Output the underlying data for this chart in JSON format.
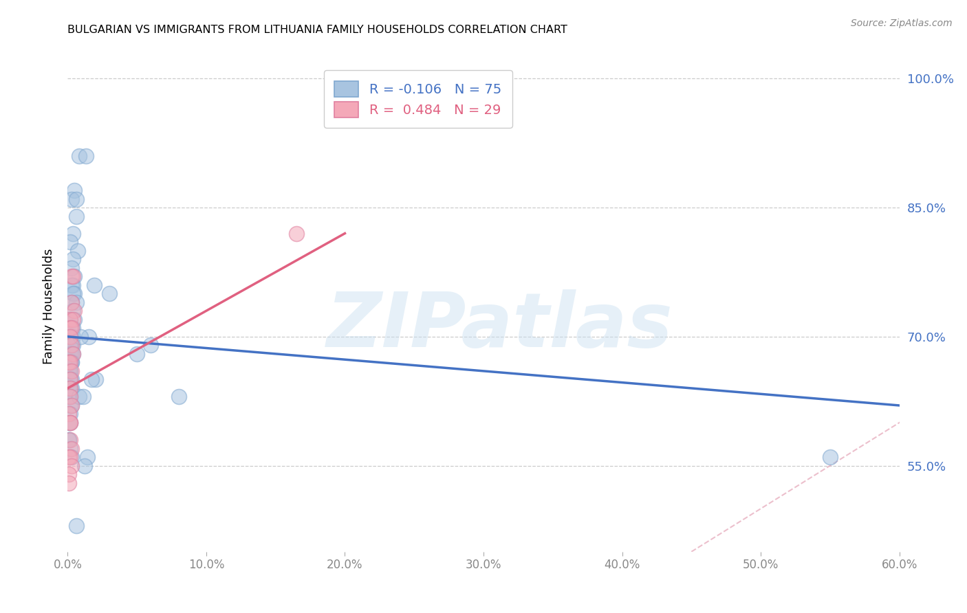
{
  "title": "BULGARIAN VS IMMIGRANTS FROM LITHUANIA FAMILY HOUSEHOLDS CORRELATION CHART",
  "source": "Source: ZipAtlas.com",
  "ylabel": "Family Households",
  "xlim": [
    0.0,
    0.6
  ],
  "ylim": [
    0.45,
    1.02
  ],
  "yticks": [
    0.55,
    0.7,
    0.85,
    1.0
  ],
  "ytick_labels": [
    "55.0%",
    "70.0%",
    "85.0%",
    "100.0%"
  ],
  "xticks": [
    0.0,
    0.1,
    0.2,
    0.3,
    0.4,
    0.5,
    0.6
  ],
  "xtick_labels": [
    "0.0%",
    "10.0%",
    "20.0%",
    "30.0%",
    "40.0%",
    "50.0%",
    "60.0%"
  ],
  "R_blue": -0.106,
  "N_blue": 75,
  "R_pink": 0.484,
  "N_pink": 29,
  "blue_color": "#a8c4e0",
  "pink_color": "#f4a8b8",
  "blue_line_color": "#4472c4",
  "pink_line_color": "#e06080",
  "watermark": "ZIPatlas",
  "watermark_color": "#c8dff0",
  "blue_scatter_x": [
    0.008,
    0.013,
    0.005,
    0.003,
    0.006,
    0.004,
    0.002,
    0.007,
    0.004,
    0.006,
    0.003,
    0.005,
    0.004,
    0.003,
    0.005,
    0.004,
    0.006,
    0.003,
    0.004,
    0.005,
    0.002,
    0.003,
    0.004,
    0.002,
    0.003,
    0.004,
    0.002,
    0.003,
    0.004,
    0.002,
    0.002,
    0.003,
    0.002,
    0.003,
    0.004,
    0.002,
    0.003,
    0.002,
    0.003,
    0.002,
    0.001,
    0.002,
    0.003,
    0.001,
    0.002,
    0.003,
    0.001,
    0.002,
    0.001,
    0.001,
    0.002,
    0.002,
    0.003,
    0.002,
    0.001,
    0.002,
    0.001,
    0.001,
    0.002,
    0.003,
    0.06,
    0.05,
    0.08,
    0.019,
    0.03,
    0.02,
    0.015,
    0.017,
    0.014,
    0.012,
    0.008,
    0.011,
    0.55,
    0.009,
    0.006
  ],
  "blue_scatter_y": [
    0.91,
    0.91,
    0.87,
    0.86,
    0.84,
    0.82,
    0.81,
    0.8,
    0.79,
    0.86,
    0.78,
    0.77,
    0.76,
    0.76,
    0.75,
    0.75,
    0.74,
    0.74,
    0.73,
    0.72,
    0.72,
    0.71,
    0.71,
    0.7,
    0.7,
    0.7,
    0.7,
    0.69,
    0.69,
    0.69,
    0.69,
    0.68,
    0.68,
    0.68,
    0.68,
    0.67,
    0.67,
    0.67,
    0.67,
    0.66,
    0.66,
    0.66,
    0.65,
    0.65,
    0.65,
    0.64,
    0.64,
    0.64,
    0.63,
    0.63,
    0.63,
    0.62,
    0.62,
    0.61,
    0.6,
    0.6,
    0.58,
    0.58,
    0.57,
    0.56,
    0.69,
    0.68,
    0.63,
    0.76,
    0.75,
    0.65,
    0.7,
    0.65,
    0.56,
    0.55,
    0.63,
    0.63,
    0.56,
    0.7,
    0.48
  ],
  "pink_scatter_x": [
    0.003,
    0.004,
    0.003,
    0.005,
    0.002,
    0.004,
    0.002,
    0.003,
    0.002,
    0.003,
    0.004,
    0.001,
    0.002,
    0.003,
    0.002,
    0.002,
    0.002,
    0.003,
    0.001,
    0.002,
    0.002,
    0.002,
    0.003,
    0.001,
    0.002,
    0.003,
    0.001,
    0.165,
    0.001
  ],
  "pink_scatter_y": [
    0.77,
    0.77,
    0.74,
    0.73,
    0.72,
    0.72,
    0.71,
    0.71,
    0.7,
    0.69,
    0.68,
    0.67,
    0.67,
    0.66,
    0.65,
    0.64,
    0.63,
    0.62,
    0.61,
    0.6,
    0.6,
    0.58,
    0.57,
    0.56,
    0.56,
    0.55,
    0.54,
    0.82,
    0.53
  ],
  "blue_line_x": [
    0.0,
    0.6
  ],
  "blue_line_y": [
    0.7,
    0.62
  ],
  "pink_line_x": [
    0.0,
    0.2
  ],
  "pink_line_y": [
    0.64,
    0.82
  ],
  "ref_line_x": [
    0.45,
    1.0
  ],
  "ref_line_y": [
    0.45,
    1.0
  ]
}
